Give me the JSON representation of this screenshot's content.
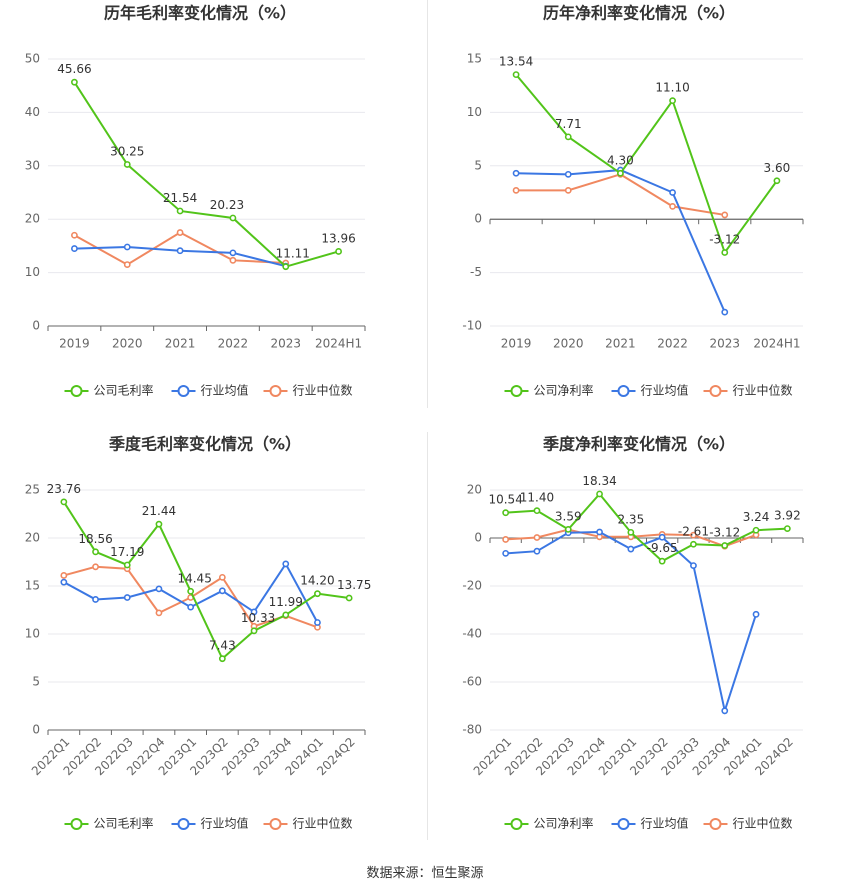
{
  "colors": {
    "company": "#52c41a",
    "industry_avg": "#3b77e3",
    "industry_median": "#f08860",
    "grid": "#e8e8ee",
    "axis_text": "#666666",
    "title_text": "#333333"
  },
  "source_label": "数据来源：恒生聚源",
  "chart_data": [
    {
      "type": "line",
      "title": "历年毛利率变化情况（%）",
      "categories": [
        "2019",
        "2020",
        "2021",
        "2022",
        "2023",
        "2024H1"
      ],
      "ylim": [
        0,
        50
      ],
      "yticks": [
        0,
        10,
        20,
        30,
        40,
        50
      ],
      "grid": true,
      "legend_position": "bottom",
      "series": [
        {
          "name": "公司毛利率",
          "key": "company",
          "values": [
            45.66,
            30.25,
            21.54,
            20.23,
            11.11,
            13.96
          ],
          "labels": [
            true,
            true,
            true,
            true,
            true,
            true
          ]
        },
        {
          "name": "行业均值",
          "key": "industry_avg",
          "values": [
            14.5,
            14.8,
            14.1,
            13.7,
            11.2,
            null
          ]
        },
        {
          "name": "行业中位数",
          "key": "industry_median",
          "values": [
            17.0,
            11.5,
            17.5,
            12.3,
            11.8,
            null
          ]
        }
      ]
    },
    {
      "type": "line",
      "title": "历年净利率变化情况（%）",
      "categories": [
        "2019",
        "2020",
        "2021",
        "2022",
        "2023",
        "2024H1"
      ],
      "ylim": [
        -10,
        15
      ],
      "yticks": [
        -10,
        -5,
        0,
        5,
        10,
        15
      ],
      "grid": true,
      "legend_position": "bottom",
      "series": [
        {
          "name": "公司净利率",
          "key": "company",
          "values": [
            13.54,
            7.71,
            4.3,
            11.1,
            -3.12,
            3.6
          ],
          "labels": [
            true,
            true,
            true,
            true,
            true,
            true
          ]
        },
        {
          "name": "行业均值",
          "key": "industry_avg",
          "values": [
            4.3,
            4.2,
            4.6,
            2.5,
            -8.7,
            null
          ]
        },
        {
          "name": "行业中位数",
          "key": "industry_median",
          "values": [
            2.7,
            2.7,
            4.2,
            1.2,
            0.4,
            null
          ]
        }
      ]
    },
    {
      "type": "line",
      "title": "季度毛利率变化情况（%）",
      "categories": [
        "2022Q1",
        "2022Q2",
        "2022Q3",
        "2022Q4",
        "2023Q1",
        "2023Q2",
        "2023Q3",
        "2023Q4",
        "2024Q1",
        "2024Q2"
      ],
      "ylim": [
        0,
        25
      ],
      "yticks": [
        0,
        5,
        10,
        15,
        20,
        25
      ],
      "grid": true,
      "legend_position": "bottom",
      "rotated_ticks": true,
      "series": [
        {
          "name": "公司毛利率",
          "key": "company",
          "values": [
            23.76,
            18.56,
            17.19,
            21.44,
            14.45,
            7.43,
            10.33,
            11.99,
            14.2,
            13.75
          ],
          "labels": [
            true,
            true,
            true,
            true,
            true,
            true,
            true,
            true,
            true,
            true
          ]
        },
        {
          "name": "行业均值",
          "key": "industry_avg",
          "values": [
            15.4,
            13.6,
            13.8,
            14.7,
            12.8,
            14.5,
            12.3,
            17.3,
            11.2,
            null
          ]
        },
        {
          "name": "行业中位数",
          "key": "industry_median",
          "values": [
            16.1,
            17.0,
            16.8,
            12.2,
            13.8,
            15.9,
            10.8,
            11.9,
            10.7,
            null
          ]
        }
      ]
    },
    {
      "type": "line",
      "title": "季度净利率变化情况（%）",
      "categories": [
        "2022Q1",
        "2022Q2",
        "2022Q3",
        "2022Q4",
        "2023Q1",
        "2023Q2",
        "2023Q3",
        "2023Q4",
        "2024Q1",
        "2024Q2"
      ],
      "ylim": [
        -80,
        20
      ],
      "yticks": [
        -80,
        -60,
        -40,
        -20,
        0,
        20
      ],
      "grid": true,
      "legend_position": "bottom",
      "rotated_ticks": true,
      "series": [
        {
          "name": "公司净利率",
          "key": "company",
          "values": [
            10.54,
            11.4,
            3.59,
            18.34,
            2.35,
            -9.65,
            -2.61,
            -3.12,
            3.24,
            3.92
          ],
          "labels": [
            true,
            true,
            true,
            true,
            true,
            true,
            true,
            true,
            true,
            true
          ]
        },
        {
          "name": "行业均值",
          "key": "industry_avg",
          "values": [
            -6.4,
            -5.5,
            2.2,
            2.5,
            -4.6,
            0.3,
            -11.5,
            -72.0,
            -31.8,
            null
          ]
        },
        {
          "name": "行业中位数",
          "key": "industry_median",
          "values": [
            -0.6,
            0.2,
            3.5,
            0.5,
            0.5,
            1.5,
            1.2,
            -3.4,
            1.3,
            null
          ]
        }
      ]
    }
  ]
}
